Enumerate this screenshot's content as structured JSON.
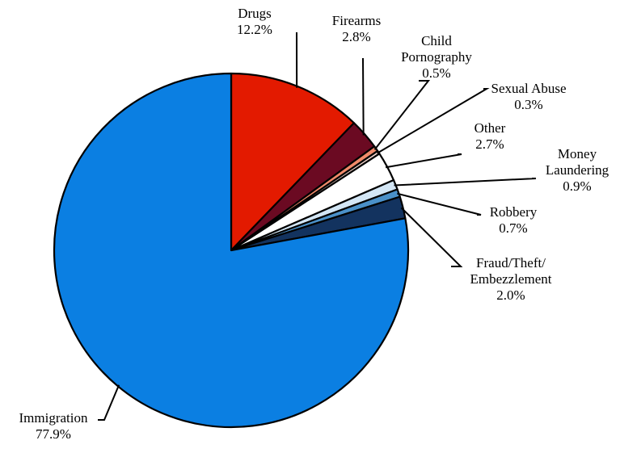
{
  "chart_data": {
    "type": "pie",
    "title": "",
    "slices": [
      {
        "label": "Drugs",
        "lines": [
          "Drugs"
        ],
        "value": 12.2,
        "value_text": "12.2%",
        "color": "#e31a00"
      },
      {
        "label": "Firearms",
        "lines": [
          "Firearms"
        ],
        "value": 2.8,
        "value_text": "2.8%",
        "color": "#6b0a22"
      },
      {
        "label": "Child Pornography",
        "lines": [
          "Child",
          "Pornography"
        ],
        "value": 0.5,
        "value_text": "0.5%",
        "color": "#f08a6a"
      },
      {
        "label": "Sexual Abuse",
        "lines": [
          "Sexual Abuse"
        ],
        "value": 0.3,
        "value_text": "0.3%",
        "color": "#f4d7cf"
      },
      {
        "label": "Other",
        "lines": [
          "Other"
        ],
        "value": 2.7,
        "value_text": "2.7%",
        "color": "#ffffff"
      },
      {
        "label": "Money Laundering",
        "lines": [
          "Money",
          "Laundering"
        ],
        "value": 0.9,
        "value_text": "0.9%",
        "color": "#d3e6f5"
      },
      {
        "label": "Robbery",
        "lines": [
          "Robbery"
        ],
        "value": 0.7,
        "value_text": "0.7%",
        "color": "#4a90c8"
      },
      {
        "label": "Fraud/Theft/Embezzlement",
        "lines": [
          "Fraud/Theft/",
          "Embezzlement"
        ],
        "value": 2.0,
        "value_text": "2.0%",
        "color": "#13335f"
      },
      {
        "label": "Immigration",
        "lines": [
          "Immigration"
        ],
        "value": 77.9,
        "value_text": "77.9%",
        "color": "#0b7fe2"
      }
    ]
  }
}
